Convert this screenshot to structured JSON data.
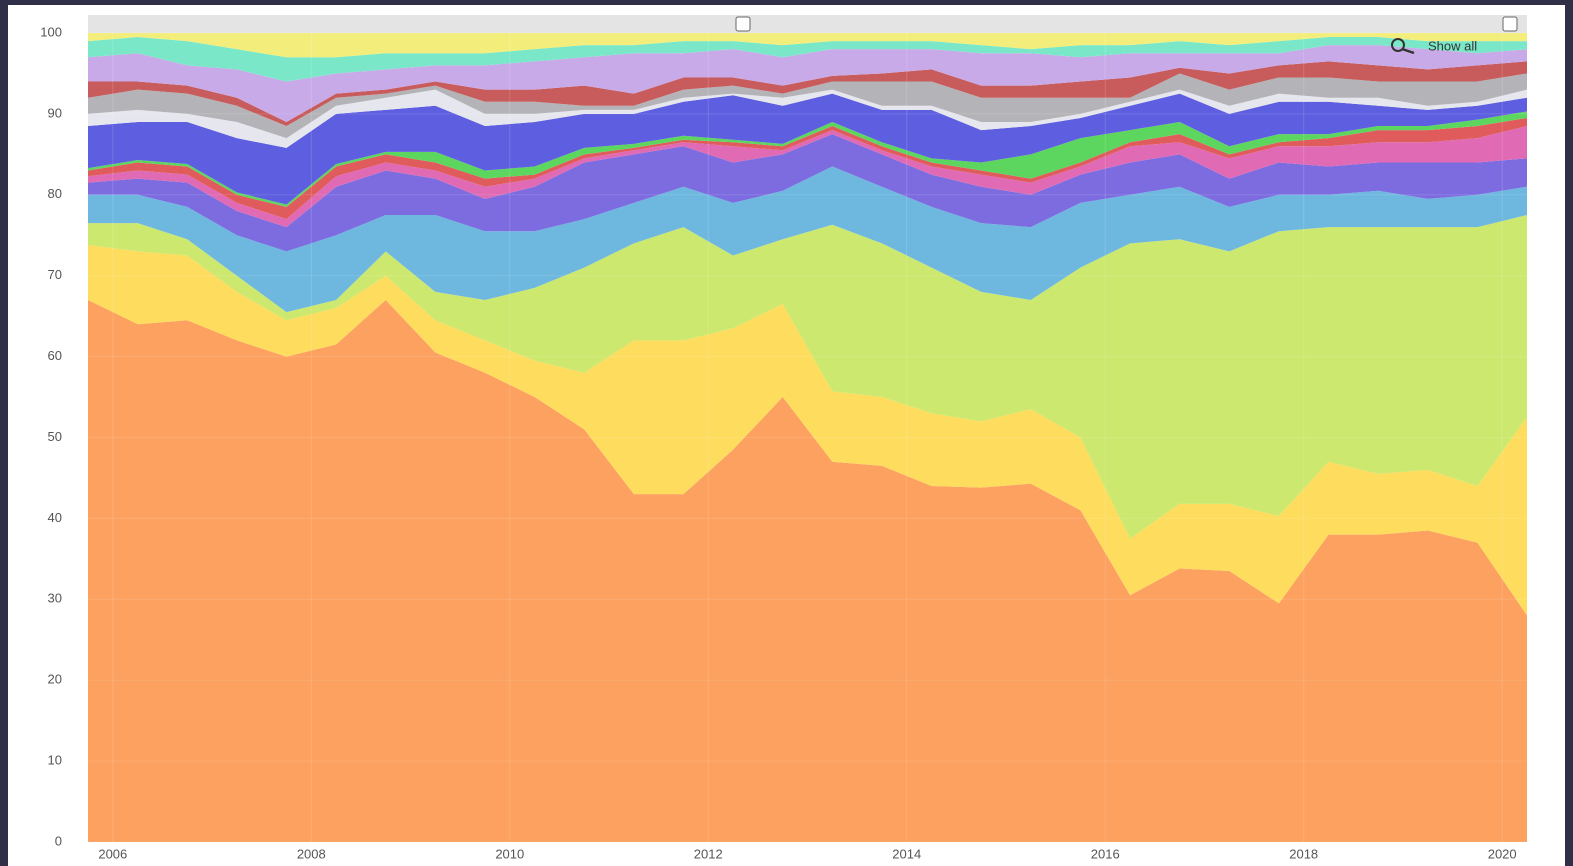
{
  "chart_data": {
    "type": "stacked_area",
    "zoom_button": "Show all",
    "x": [
      2005.75,
      2006.25,
      2006.75,
      2007.25,
      2007.75,
      2008.25,
      2008.75,
      2009.25,
      2009.75,
      2010.25,
      2010.75,
      2011.25,
      2011.75,
      2012.25,
      2012.75,
      2013.25,
      2013.75,
      2014.25,
      2014.75,
      2015.25,
      2015.75,
      2016.25,
      2016.75,
      2017.25,
      2017.75,
      2018.25,
      2018.75,
      2019.25,
      2019.75,
      2020.25
    ],
    "xlim": [
      2005.75,
      2020.25
    ],
    "xticks": [
      2006,
      2008,
      2010,
      2012,
      2014,
      2016,
      2018,
      2020
    ],
    "ylim": [
      0,
      100
    ],
    "yticks": [
      0,
      10,
      20,
      30,
      40,
      50,
      60,
      70,
      80,
      90,
      100
    ],
    "grid": true,
    "series": [
      {
        "color": "#fca160",
        "values": [
          67,
          64,
          64.5,
          62,
          60,
          61.5,
          67,
          60.5,
          58,
          55,
          51,
          43,
          43,
          48.5,
          55,
          47,
          46.5,
          44,
          43.8,
          44.3,
          41,
          30.5,
          33.8,
          33.5,
          29.5,
          38,
          38,
          38.5,
          37,
          28
        ]
      },
      {
        "color": "#fddc5e",
        "values": [
          6.8,
          9,
          8,
          6,
          4.5,
          4.5,
          3,
          4,
          4,
          4.5,
          7,
          19,
          19,
          15,
          11.5,
          8.7,
          8.5,
          9,
          8.2,
          9.2,
          9,
          7,
          8,
          8.3,
          10.8,
          9,
          7.5,
          7.5,
          7,
          24.5
        ]
      },
      {
        "color": "#cde86e",
        "values": [
          2.7,
          3.5,
          2,
          2,
          1,
          1,
          3,
          3.5,
          5,
          9,
          13,
          12,
          14,
          9,
          8,
          20.6,
          19,
          18,
          16,
          13.5,
          21,
          36.5,
          32.7,
          31.2,
          35.2,
          29,
          30.5,
          30,
          32,
          25
        ]
      },
      {
        "color": "#6eb8e0",
        "values": [
          3.5,
          3.5,
          4,
          5,
          7.5,
          8,
          4.5,
          9.5,
          8.5,
          7,
          6,
          5,
          5,
          6.5,
          6,
          7.2,
          7,
          7.5,
          8.5,
          9,
          8,
          6,
          6.5,
          5.5,
          4.5,
          4,
          4.5,
          3.5,
          4,
          3.5
        ]
      },
      {
        "color": "#7d6ce0",
        "values": [
          1.5,
          2,
          3,
          3,
          3,
          6,
          5.5,
          4.5,
          4,
          5.5,
          7,
          6,
          5,
          5,
          4.5,
          4,
          4,
          4,
          4.5,
          4,
          3.5,
          4,
          4,
          3.5,
          4,
          3.5,
          3.5,
          4.5,
          4,
          3.5
        ]
      },
      {
        "color": "#e06ab4",
        "values": [
          0.8,
          1,
          1,
          1,
          1,
          1.3,
          1,
          1,
          1.5,
          1,
          0.5,
          0.5,
          0.5,
          2,
          0.5,
          0.5,
          0.5,
          1,
          1.5,
          1.5,
          1,
          2,
          1.5,
          2.5,
          2,
          2.5,
          2.5,
          2.5,
          3,
          4
        ]
      },
      {
        "color": "#e05c5c",
        "values": [
          0.7,
          1,
          1,
          1,
          1.5,
          1.2,
          1,
          1,
          1,
          0.5,
          0.5,
          0.3,
          0.3,
          0.5,
          0.5,
          0.5,
          0.5,
          0.5,
          0.5,
          0.5,
          0.5,
          0.5,
          1,
          0.5,
          0.5,
          1,
          1.5,
          1.5,
          1.5,
          1
        ]
      },
      {
        "color": "#5cd65e",
        "values": [
          0.3,
          0.3,
          0.3,
          0.3,
          0.3,
          0.3,
          0.3,
          1.3,
          1,
          1,
          0.8,
          0.5,
          0.5,
          0.3,
          0.3,
          0.5,
          0.5,
          0.5,
          1,
          3,
          3,
          1.5,
          1.5,
          1,
          1,
          0.5,
          0.5,
          0.5,
          0.8,
          0.8
        ]
      },
      {
        "color": "#5e5ee0",
        "values": [
          5.2,
          4.7,
          5.2,
          6.7,
          7,
          6.2,
          5.2,
          5.7,
          5.5,
          5.5,
          4.2,
          3.7,
          4.2,
          5.5,
          4.7,
          3.5,
          4,
          6,
          4,
          3.5,
          2.5,
          3,
          3.5,
          4,
          4,
          4,
          2.5,
          2,
          1.7,
          1.7
        ]
      },
      {
        "color": "#e6e6ee",
        "values": [
          1.5,
          1.5,
          1,
          2,
          1.2,
          1,
          1.5,
          2,
          1.5,
          1,
          0.5,
          0.5,
          0.5,
          0.2,
          1,
          0.5,
          0.5,
          0.5,
          1,
          0.5,
          0.5,
          0.5,
          0.5,
          1,
          1,
          0.5,
          1,
          0.5,
          0.5,
          1
        ]
      },
      {
        "color": "#b4b4b8",
        "values": [
          2,
          2.5,
          2.5,
          2,
          1.5,
          1,
          0.5,
          0.5,
          1.5,
          1.5,
          0.5,
          0.5,
          1,
          1,
          0.5,
          1,
          3,
          3,
          3,
          3,
          2,
          0.5,
          2,
          2,
          2,
          2.5,
          2,
          3,
          2.5,
          2
        ]
      },
      {
        "color": "#c85c5c",
        "values": [
          2,
          1,
          1,
          1,
          0.5,
          0.5,
          0.5,
          0.5,
          1.5,
          1.5,
          2.5,
          1.5,
          1.5,
          1,
          1,
          0.7,
          1,
          1.5,
          1.5,
          1.5,
          2,
          2.5,
          0.7,
          2,
          1.5,
          2,
          2,
          1.5,
          2,
          1.5
        ]
      },
      {
        "color": "#c8aae8",
        "values": [
          3,
          3.5,
          2.5,
          3.5,
          5,
          2.5,
          2.5,
          2,
          3,
          3.5,
          3.5,
          5,
          3,
          3.5,
          3.5,
          3.3,
          3,
          2.5,
          4,
          4,
          3,
          3,
          1.8,
          2.5,
          1.5,
          2,
          2.5,
          2.5,
          1.5,
          1.5
        ]
      },
      {
        "color": "#7ae8c8",
        "values": [
          2,
          2,
          3,
          2.5,
          3,
          2,
          2,
          1.5,
          1.5,
          1.5,
          1.5,
          1,
          1.5,
          1,
          1.5,
          1,
          1,
          1,
          1,
          0.5,
          1.5,
          1,
          1.5,
          1,
          1.5,
          1,
          1,
          1,
          1.5,
          1
        ]
      },
      {
        "color": "#f3ee7c",
        "values": [
          1,
          0.5,
          1,
          2,
          3,
          3,
          2.5,
          2.5,
          2.5,
          2,
          1.5,
          1.5,
          1,
          1,
          1.5,
          1,
          1,
          1,
          1.5,
          2,
          1.5,
          1.5,
          1,
          1.5,
          1,
          0.5,
          0.5,
          1,
          1,
          1
        ]
      }
    ]
  }
}
